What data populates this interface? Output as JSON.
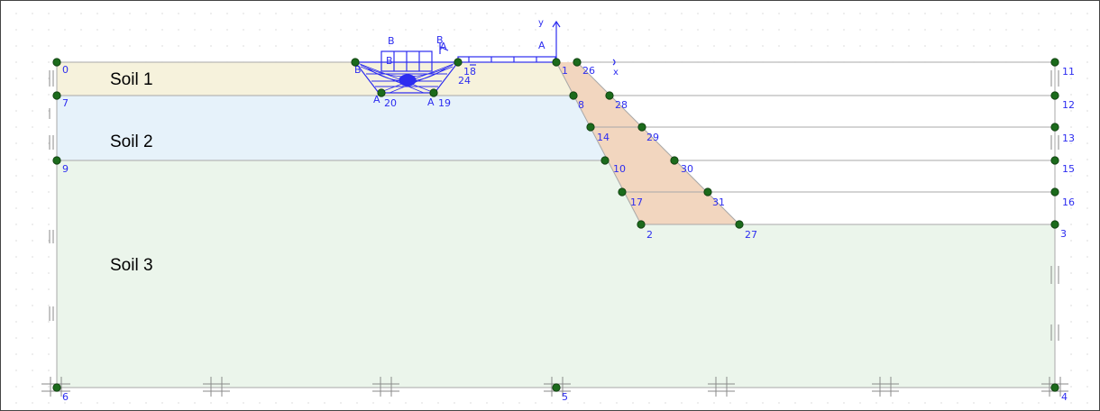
{
  "diagram": {
    "colors": {
      "soil1": "#f6f2dc",
      "soil2": "#e6f2fa",
      "soil3": "#ebf5eb",
      "excavation": "#f2d6bf",
      "structure": "#2d2df0",
      "node": "#1c6b1c",
      "boundary": "#999999"
    },
    "soil_labels": [
      {
        "id": "soil1",
        "text": "Soil 1"
      },
      {
        "id": "soil2",
        "text": "Soil 2"
      },
      {
        "id": "soil3",
        "text": "Soil 3"
      }
    ],
    "axis": {
      "y": "y",
      "x": "x"
    },
    "point_labels": {
      "p0": "0",
      "p7": "7",
      "p9": "9",
      "p6": "6",
      "p11": "11",
      "p12": "12",
      "p13": "13",
      "p15": "15",
      "p16": "16",
      "p3": "3",
      "p4": "4",
      "p1": "1",
      "p26": "26",
      "p8": "8",
      "p28": "28",
      "p14": "14",
      "p29": "29",
      "p10": "10",
      "p30": "30",
      "p17": "17",
      "p31": "31",
      "p2": "2",
      "p27": "27",
      "p5": "5",
      "p18": "18",
      "p24": "24",
      "p20": "20",
      "p19": "19"
    },
    "beam_labels": {
      "b1": "B",
      "b2": "B",
      "bleft": "B",
      "a1": "A",
      "a2": "A",
      "a_mid": "A"
    }
  }
}
